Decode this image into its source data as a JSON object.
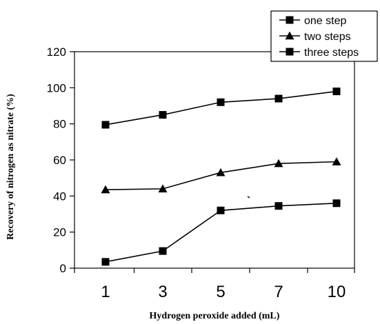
{
  "chart_data": {
    "type": "line",
    "title": "",
    "xlabel": "Hydrogen peroxide added (mL)",
    "ylabel": "Recovery of nitrogen as nitrate (%)",
    "categories": [
      "1",
      "3",
      "5",
      "7",
      "10"
    ],
    "ylim": [
      0,
      120
    ],
    "yticks": [
      0,
      20,
      40,
      60,
      80,
      100,
      120
    ],
    "grid": false,
    "legend_position": "top-right",
    "series": [
      {
        "name": "one step",
        "marker": "square",
        "values": [
          3.5,
          9.5,
          32.0,
          34.5,
          36.0
        ]
      },
      {
        "name": "two steps",
        "marker": "triangle",
        "values": [
          43.5,
          44.0,
          53.0,
          58.0,
          59.0
        ]
      },
      {
        "name": "three steps",
        "marker": "square",
        "values": [
          79.5,
          85.0,
          92.0,
          94.0,
          98.0
        ]
      }
    ],
    "colors": {
      "line": "#000000",
      "background": "#ffffff"
    }
  }
}
